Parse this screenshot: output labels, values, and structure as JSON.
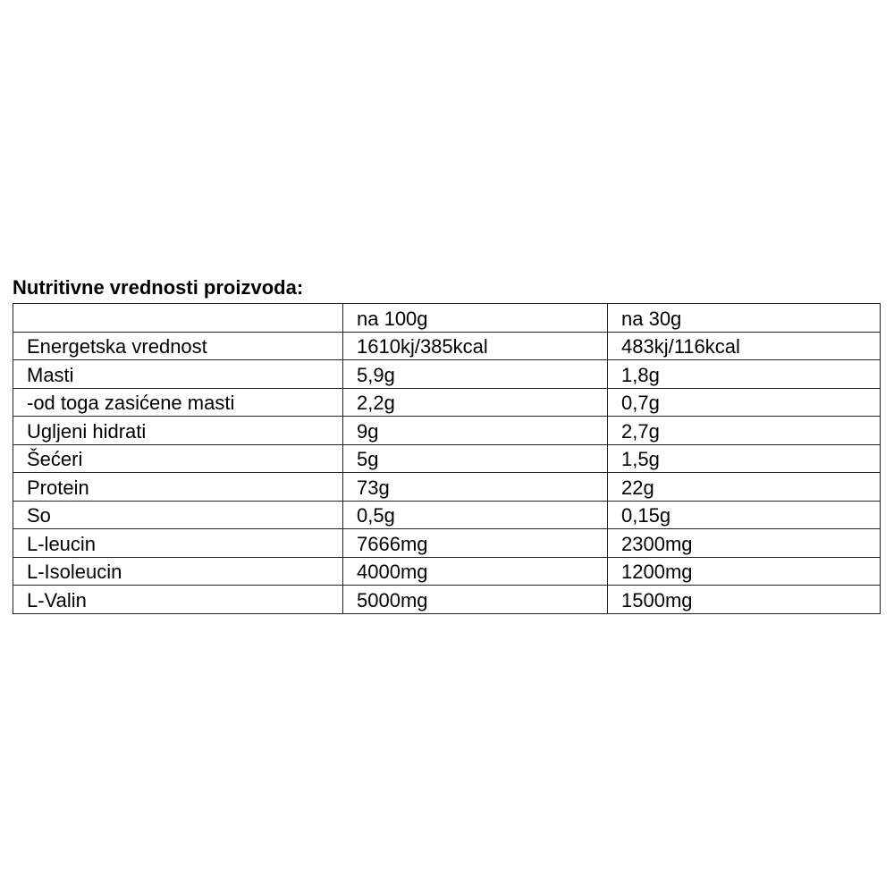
{
  "title": "Nutritivne vrednosti proizvoda:",
  "table": {
    "headers": [
      "",
      "na 100g",
      "na 30g"
    ],
    "rows": [
      [
        "Energetska vrednost",
        "1610kj/385kcal",
        "483kj/116kcal"
      ],
      [
        "Masti",
        "5,9g",
        "1,8g"
      ],
      [
        "-od toga zasićene masti",
        "2,2g",
        "0,7g"
      ],
      [
        "Ugljeni hidrati",
        "9g",
        "2,7g"
      ],
      [
        "Šećeri",
        "5g",
        "1,5g"
      ],
      [
        "Protein",
        "73g",
        "22g"
      ],
      [
        "So",
        "0,5g",
        "0,15g"
      ],
      [
        "L-leucin",
        "7666mg",
        "2300mg"
      ],
      [
        "L-Isoleucin",
        "4000mg",
        "1200mg"
      ],
      [
        "L-Valin",
        "5000mg",
        "1500mg"
      ]
    ]
  }
}
